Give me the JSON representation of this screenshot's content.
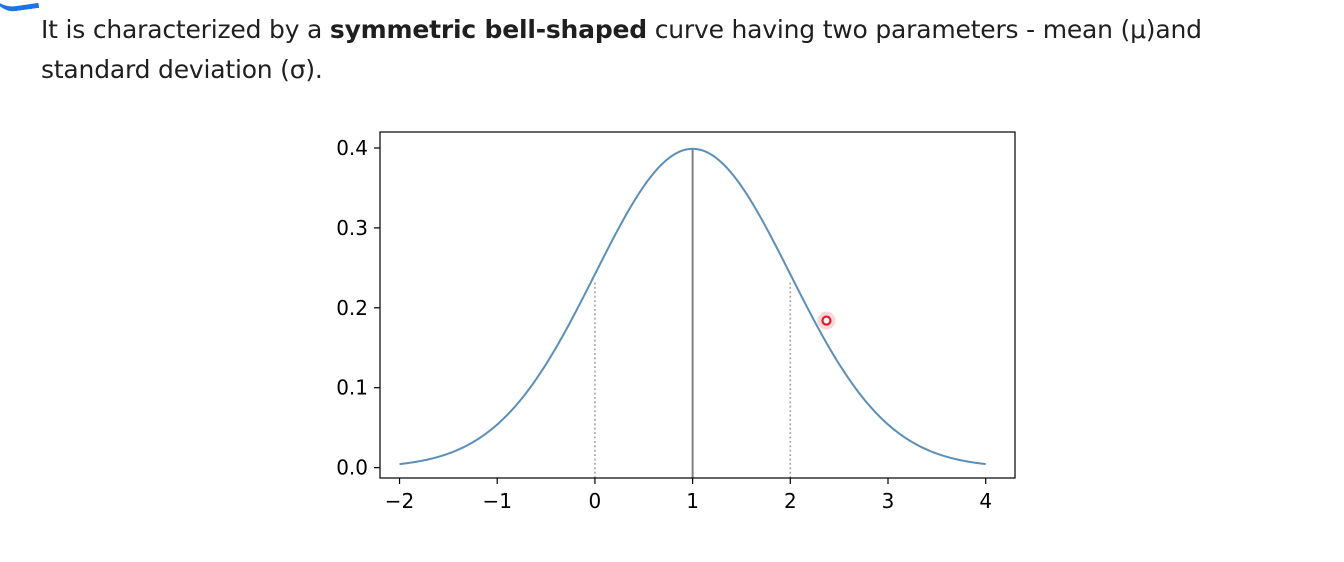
{
  "paragraph": {
    "line1_prefix": "It is characterized by a ",
    "line1_bold": "symmetric bell-shaped",
    "line1_suffix": " curve having two parameters - mean (μ)and",
    "line2": "standard deviation (σ)."
  },
  "colors": {
    "curve": "#5b8fb9",
    "mean_line": "#808080",
    "sigma_lines": "#a0a0a0",
    "cursor": "#e0192b",
    "corner_accent": "#1a73e8"
  },
  "chart_data": {
    "type": "line",
    "title": "",
    "xlabel": "",
    "ylabel": "",
    "xlim": [
      -2.2,
      4.3
    ],
    "ylim": [
      -0.013,
      0.42
    ],
    "x_ticks": [
      -2,
      -1,
      0,
      1,
      2,
      3,
      4
    ],
    "x_tick_labels": [
      "−2",
      "−1",
      "0",
      "1",
      "2",
      "3",
      "4"
    ],
    "y_ticks": [
      0.0,
      0.1,
      0.2,
      0.3,
      0.4
    ],
    "y_tick_labels": [
      "0.0",
      "0.1",
      "0.2",
      "0.3",
      "0.4"
    ],
    "grid": false,
    "series": [
      {
        "distribution": "normal",
        "mean": 1,
        "std": 1,
        "x_range": [
          -2,
          4
        ]
      }
    ],
    "vertical_lines": [
      {
        "x": 1,
        "y_top": 0.399,
        "style": "solid"
      },
      {
        "x": 0,
        "y_top": 0.233,
        "style": "dotted"
      },
      {
        "x": 2,
        "y_top": 0.233,
        "style": "dotted"
      }
    ]
  },
  "cursor": {
    "x": 2.37,
    "y": 0.184
  }
}
